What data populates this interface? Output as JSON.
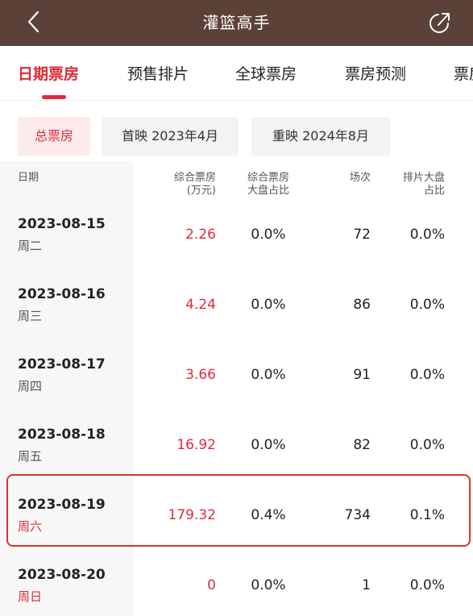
{
  "header": {
    "title": "灌篮高手",
    "back_icon": "chevron-left-icon",
    "share_icon": "share-icon"
  },
  "tabs": [
    {
      "label": "日期票房",
      "active": true
    },
    {
      "label": "预售排片",
      "active": false
    },
    {
      "label": "全球票房",
      "active": false
    },
    {
      "label": "票房预测",
      "active": false
    },
    {
      "label": "票房",
      "active": false
    }
  ],
  "filters": [
    {
      "label": "总票房",
      "active": true
    },
    {
      "label": "首映 2023年4月",
      "active": false
    },
    {
      "label": "重映 2024年8月",
      "active": false
    }
  ],
  "table": {
    "headers": {
      "date": "日期",
      "boxoffice_line1": "综合票房",
      "boxoffice_line2": "(万元)",
      "share_line1": "综合票房",
      "share_line2": "大盘占比",
      "shows": "场次",
      "screen_line1": "排片大盘",
      "screen_line2": "占比"
    },
    "rows": [
      {
        "date": "2023-08-15",
        "weekday": "周二",
        "boxoffice": "2.26",
        "share": "0.0%",
        "shows": "72",
        "screen": "0.0%",
        "weekend": false
      },
      {
        "date": "2023-08-16",
        "weekday": "周三",
        "boxoffice": "4.24",
        "share": "0.0%",
        "shows": "86",
        "screen": "0.0%",
        "weekend": false
      },
      {
        "date": "2023-08-17",
        "weekday": "周四",
        "boxoffice": "3.66",
        "share": "0.0%",
        "shows": "91",
        "screen": "0.0%",
        "weekend": false
      },
      {
        "date": "2023-08-18",
        "weekday": "周五",
        "boxoffice": "16.92",
        "share": "0.0%",
        "shows": "82",
        "screen": "0.0%",
        "weekend": false
      },
      {
        "date": "2023-08-19",
        "weekday": "周六",
        "boxoffice": "179.32",
        "share": "0.4%",
        "shows": "734",
        "screen": "0.1%",
        "weekend": true
      },
      {
        "date": "2023-08-20",
        "weekday": "周日",
        "boxoffice": "0",
        "share": "0.0%",
        "shows": "1",
        "screen": "0.0%",
        "weekend": true
      }
    ],
    "highlighted_row": 4
  },
  "colors": {
    "header_bg": "#5b4137",
    "accent": "#e02a3a",
    "highlight_border": "#d7342c"
  }
}
